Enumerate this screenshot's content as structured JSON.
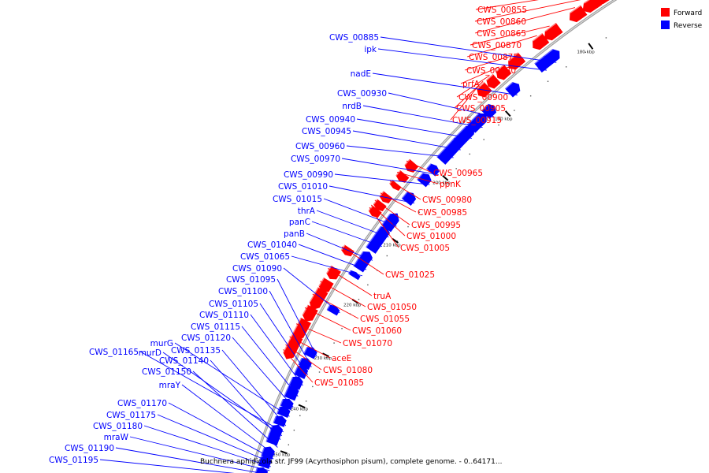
{
  "caption": "Buchnera aphidicola str. JF99 (Acyrthosiphon pisum), complete genome. - 0..64171...",
  "legend": [
    {
      "label": "Forward",
      "color": "#ff0000"
    },
    {
      "label": "Reverse",
      "color": "#0000ff"
    }
  ],
  "colors": {
    "forward": "#ff0000",
    "reverse": "#0000ff",
    "backbone": "#888888"
  },
  "ticks": [
    {
      "label": "180 kbp"
    },
    {
      "label": "190 kbp"
    },
    {
      "label": "200 kbp"
    },
    {
      "label": "210 kbp"
    },
    {
      "label": "220 kbp"
    },
    {
      "label": "230 kbp"
    },
    {
      "label": "240 kbp"
    },
    {
      "label": "250 kbp"
    }
  ],
  "forward_genes": [
    "CWS_00855",
    "CWS_00860",
    "CWS_00865",
    "CWS_00870",
    "CWS_00875",
    "CWS_00880",
    "prfA",
    "CWS_00900",
    "CWS_00905",
    "CWS_00915",
    "CWS_00965",
    "ppnK",
    "CWS_00980",
    "CWS_00985",
    "CWS_00995",
    "CWS_01000",
    "CWS_01005",
    "CWS_01025",
    "truA",
    "CWS_01050",
    "CWS_01055",
    "CWS_01060",
    "CWS_01070",
    "aceE",
    "CWS_01080",
    "CWS_01085"
  ],
  "reverse_genes": [
    "CWS_00885",
    "ipk",
    "nadE",
    "CWS_00930",
    "nrdB",
    "CWS_00940",
    "CWS_00945",
    "CWS_00960",
    "CWS_00970",
    "CWS_00990",
    "CWS_01010",
    "CWS_01015",
    "thrA",
    "panC",
    "panB",
    "CWS_01040",
    "CWS_01065",
    "CWS_01090",
    "CWS_01095",
    "CWS_01100",
    "CWS_01105",
    "CWS_01110",
    "CWS_01115",
    "CWS_01120",
    "murG",
    "CWS_01135",
    "CWS_01165",
    "murD",
    "CWS_01140",
    "CWS_01150",
    "mraY",
    "CWS_01170",
    "CWS_01175",
    "CWS_01180",
    "mraW",
    "CWS_01190",
    "CWS_01195"
  ]
}
